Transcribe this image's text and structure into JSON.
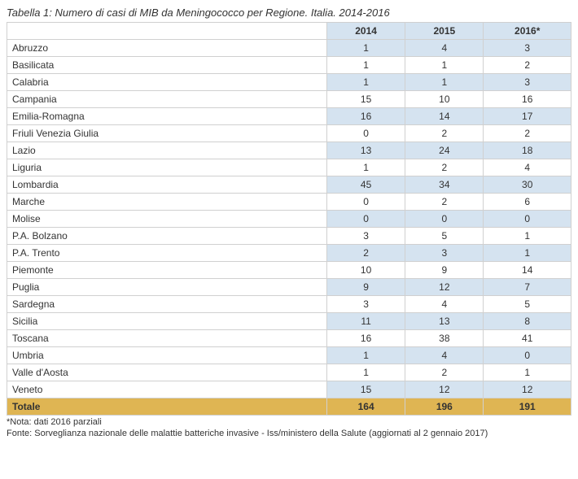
{
  "title": "Tabella 1: Numero di casi di MIB da Meningococco per Regione. Italia. 2014-2016",
  "columns": [
    "2014",
    "2015",
    "2016*"
  ],
  "rows": [
    {
      "region": "Abruzzo",
      "values": [
        1,
        4,
        3
      ]
    },
    {
      "region": "Basilicata",
      "values": [
        1,
        1,
        2
      ]
    },
    {
      "region": "Calabria",
      "values": [
        1,
        1,
        3
      ]
    },
    {
      "region": "Campania",
      "values": [
        15,
        10,
        16
      ]
    },
    {
      "region": "Emilia-Romagna",
      "values": [
        16,
        14,
        17
      ]
    },
    {
      "region": "Friuli Venezia Giulia",
      "values": [
        0,
        2,
        2
      ]
    },
    {
      "region": "Lazio",
      "values": [
        13,
        24,
        18
      ]
    },
    {
      "region": "Liguria",
      "values": [
        1,
        2,
        4
      ]
    },
    {
      "region": "Lombardia",
      "values": [
        45,
        34,
        30
      ]
    },
    {
      "region": "Marche",
      "values": [
        0,
        2,
        6
      ]
    },
    {
      "region": "Molise",
      "values": [
        0,
        0,
        0
      ]
    },
    {
      "region": "P.A. Bolzano",
      "values": [
        3,
        5,
        1
      ]
    },
    {
      "region": "P.A. Trento",
      "values": [
        2,
        3,
        1
      ]
    },
    {
      "region": "Piemonte",
      "values": [
        10,
        9,
        14
      ]
    },
    {
      "region": "Puglia",
      "values": [
        9,
        12,
        7
      ]
    },
    {
      "region": "Sardegna",
      "values": [
        3,
        4,
        5
      ]
    },
    {
      "region": "Sicilia",
      "values": [
        11,
        13,
        8
      ]
    },
    {
      "region": "Toscana",
      "values": [
        16,
        38,
        41
      ]
    },
    {
      "region": "Umbria",
      "values": [
        1,
        4,
        0
      ]
    },
    {
      "region": "Valle d'Aosta",
      "values": [
        1,
        2,
        1
      ]
    },
    {
      "region": "Veneto",
      "values": [
        15,
        12,
        12
      ]
    }
  ],
  "total": {
    "label": "Totale",
    "values": [
      164,
      196,
      191
    ]
  },
  "note": "*Nota: dati 2016 parziali",
  "source": "Fonte: Sorveglianza nazionale delle malattie batteriche invasive - Iss/ministero della Salute (aggiornati al 2 gennaio 2017)",
  "colors": {
    "header_bg": "#d5e3f0",
    "stripe_bg": "#d5e3f0",
    "total_bg": "#dfb553",
    "border": "#d0d0d0",
    "text": "#333333"
  },
  "column_widths": {
    "region": 380,
    "value": 105
  },
  "font_family": "Verdana, Arial, sans-serif",
  "font_size_body": 12,
  "font_size_note": 11
}
